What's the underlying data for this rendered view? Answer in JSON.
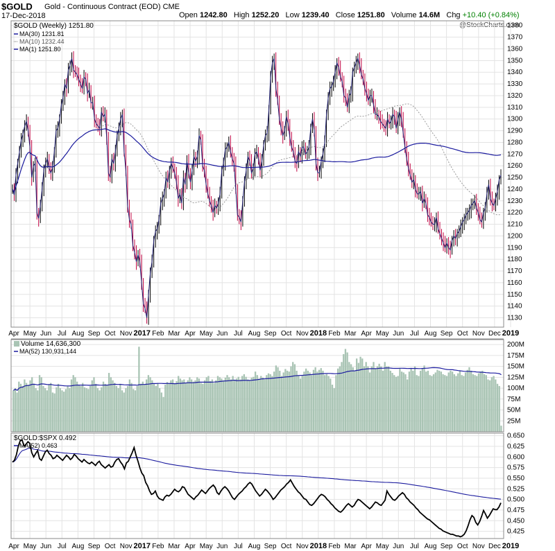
{
  "header": {
    "symbol": "$GOLD",
    "description": "Gold - Continuous Contract (EOD)",
    "exchange": "CME",
    "date": "17-Dec-2018",
    "open_label": "Open",
    "open": "1242.80",
    "high_label": "High",
    "high": "1252.20",
    "low_label": "Low",
    "low": "1239.40",
    "close_label": "Close",
    "close": "1251.80",
    "volume_label": "Volume",
    "volume": "14.6M",
    "chg_label": "Chg",
    "chg": "+10.40 (+0.84%)",
    "watermark": "@StockCharts.com"
  },
  "colors": {
    "price_line": "#1a1a6e",
    "ma30": "#1a1a9e",
    "ma10": "#999999",
    "up_bar": "#000000",
    "down_bar": "#c00040",
    "volume_bar": "#a9c4b4",
    "volume_ma": "#1a1a9e",
    "ratio_line": "#000000",
    "ratio_ma": "#1a1a9e",
    "grid": "#e3e3e3"
  },
  "chart_data": [
    {
      "type": "line",
      "title": "$GOLD (Weekly) 1251.80",
      "legend": [
        {
          "label": "MA(30) 1231.81",
          "style": "solid"
        },
        {
          "label": "MA(10) 1232.44",
          "style": "dotted"
        },
        {
          "label": "MA(1) 1251.80",
          "style": "solid"
        }
      ],
      "yticks": [
        1130,
        1140,
        1150,
        1160,
        1170,
        1180,
        1190,
        1200,
        1210,
        1220,
        1230,
        1240,
        1250,
        1260,
        1270,
        1280,
        1290,
        1300,
        1310,
        1320,
        1330,
        1340,
        1350,
        1360,
        1370,
        1380
      ],
      "ylim": [
        1122,
        1384
      ],
      "close_weekly": [
        1240,
        1235,
        1252,
        1262,
        1272,
        1282,
        1287,
        1294,
        1298,
        1290,
        1276,
        1250,
        1260,
        1262,
        1220,
        1215,
        1226,
        1240,
        1257,
        1262,
        1266,
        1258,
        1254,
        1258,
        1272,
        1290,
        1292,
        1300,
        1312,
        1318,
        1330,
        1326,
        1342,
        1346,
        1352,
        1342,
        1340,
        1338,
        1334,
        1330,
        1326,
        1336,
        1334,
        1322,
        1325,
        1314,
        1314,
        1300,
        1296,
        1294,
        1292,
        1306,
        1302,
        1304,
        1284,
        1254,
        1250,
        1266,
        1262,
        1272,
        1286,
        1292,
        1300,
        1304,
        1272,
        1256,
        1226,
        1214,
        1210,
        1192,
        1186,
        1178,
        1184,
        1178,
        1160,
        1142,
        1138,
        1130,
        1150,
        1168,
        1178,
        1196,
        1204,
        1206,
        1214,
        1228,
        1232,
        1236,
        1250,
        1246,
        1256,
        1262,
        1258,
        1254,
        1246,
        1232,
        1236,
        1228,
        1250,
        1244,
        1264,
        1254,
        1246,
        1256,
        1268,
        1264,
        1268,
        1286,
        1282,
        1260,
        1256,
        1244,
        1236,
        1230,
        1226,
        1220,
        1226,
        1224,
        1228,
        1236,
        1256,
        1262,
        1274,
        1276,
        1280,
        1272,
        1266,
        1262,
        1240,
        1218,
        1216,
        1212,
        1230,
        1246,
        1256,
        1268,
        1264,
        1254,
        1258,
        1270,
        1272,
        1266,
        1256,
        1264,
        1278,
        1286,
        1288,
        1308,
        1336,
        1348,
        1352,
        1326,
        1316,
        1300,
        1292,
        1286,
        1290,
        1302,
        1296,
        1284,
        1276,
        1272,
        1264,
        1262,
        1272,
        1268,
        1276,
        1276,
        1270,
        1272,
        1276,
        1292,
        1300,
        1290,
        1262,
        1254,
        1254,
        1264,
        1270,
        1280,
        1304,
        1318,
        1326,
        1328,
        1332,
        1340,
        1348,
        1344,
        1336,
        1332,
        1320,
        1318,
        1310,
        1320,
        1322,
        1340,
        1344,
        1348,
        1352,
        1346,
        1338,
        1334,
        1326,
        1322,
        1316,
        1320,
        1320,
        1312,
        1304,
        1304,
        1302,
        1298,
        1296,
        1294,
        1292,
        1300,
        1296,
        1298,
        1304,
        1302,
        1292,
        1300,
        1306,
        1300,
        1288,
        1276,
        1266,
        1258,
        1252,
        1246,
        1248,
        1240,
        1236,
        1236,
        1238,
        1228,
        1232,
        1228,
        1218,
        1216,
        1212,
        1210,
        1210,
        1216,
        1206,
        1202,
        1198,
        1194,
        1190,
        1194,
        1190,
        1188,
        1196,
        1200,
        1198,
        1202,
        1204,
        1208,
        1212,
        1214,
        1218,
        1220,
        1222,
        1226,
        1228,
        1230,
        1224,
        1220,
        1214,
        1212,
        1220,
        1224,
        1236,
        1244,
        1232,
        1228,
        1226,
        1232,
        1238,
        1248,
        1252
      ]
    },
    {
      "type": "bar",
      "title": "Volume 14,636,300",
      "legend": [
        {
          "label": "MA(52) 130,931,144"
        }
      ],
      "yticks_labels": [
        "25M",
        "50M",
        "75M",
        "100M",
        "125M",
        "150M",
        "175M",
        "200M"
      ],
      "ylim": [
        0,
        205
      ],
      "values_millions": [
        95,
        100,
        90,
        115,
        110,
        105,
        120,
        112,
        108,
        118,
        125,
        110,
        100,
        95,
        130,
        125,
        105,
        100,
        95,
        108,
        112,
        90,
        88,
        102,
        110,
        100,
        95,
        92,
        98,
        105,
        100,
        120,
        130,
        125,
        115,
        108,
        105,
        112,
        102,
        100,
        98,
        105,
        118,
        125,
        110,
        100,
        95,
        102,
        115,
        110,
        108,
        135,
        125,
        118,
        112,
        105,
        100,
        110,
        95,
        90,
        100,
        105,
        120,
        112,
        98,
        95,
        105,
        195,
        110,
        115,
        108,
        120,
        130,
        125,
        118,
        110,
        105,
        112,
        100,
        90,
        80,
        108,
        114,
        112,
        118,
        120,
        110,
        116,
        128,
        122,
        118,
        120,
        112,
        118,
        125,
        120,
        115,
        118,
        125,
        122,
        112,
        110,
        118,
        125,
        128,
        116,
        120,
        112,
        118,
        128,
        125,
        122,
        118,
        124,
        130,
        125,
        120,
        128,
        118,
        122,
        126,
        120,
        128,
        132,
        126,
        120,
        118,
        124,
        126,
        138,
        130,
        122,
        128,
        124,
        120,
        130,
        134,
        132,
        128,
        138,
        152,
        148,
        140,
        128,
        136,
        144,
        140,
        138,
        150,
        160,
        155,
        140,
        130,
        122,
        130,
        138,
        145,
        140,
        136,
        130,
        142,
        148,
        138,
        142,
        146,
        140,
        130,
        132,
        128,
        122,
        108,
        100,
        130,
        145,
        150,
        160,
        178,
        190,
        182,
        160,
        155,
        148,
        140,
        168,
        158,
        172,
        168,
        150,
        160,
        150,
        136,
        150,
        160,
        144,
        150,
        156,
        150,
        140,
        160,
        150,
        150,
        140,
        135,
        130,
        126,
        128,
        146,
        138,
        136,
        132,
        120,
        138,
        146,
        140,
        150,
        130,
        128,
        140,
        146,
        152,
        138,
        140,
        130,
        128,
        132,
        136,
        142,
        140,
        138,
        132,
        130,
        128,
        136,
        140,
        138,
        132,
        128,
        134,
        140,
        130,
        128,
        136,
        142,
        148,
        140,
        132,
        130,
        128,
        134,
        138,
        140,
        132,
        130,
        120,
        118,
        125,
        128,
        120,
        110,
        105,
        14
      ]
    },
    {
      "type": "line",
      "title": "$GOLD:$SPX 0.492",
      "legend": [
        {
          "label": "MA(52) 0.463"
        }
      ],
      "yticks_labels": [
        "0.425",
        "0.450",
        "0.475",
        "0.500",
        "0.525",
        "0.550",
        "0.575",
        "0.600",
        "0.625",
        "0.650"
      ],
      "ylim": [
        0.408,
        0.656
      ],
      "values": [
        0.588,
        0.592,
        0.605,
        0.625,
        0.638,
        0.64,
        0.625,
        0.63,
        0.636,
        0.632,
        0.61,
        0.6,
        0.608,
        0.615,
        0.596,
        0.592,
        0.602,
        0.612,
        0.616,
        0.608,
        0.604,
        0.596,
        0.598,
        0.604,
        0.6,
        0.596,
        0.592,
        0.598,
        0.604,
        0.6,
        0.594,
        0.598,
        0.606,
        0.602,
        0.596,
        0.592,
        0.588,
        0.594,
        0.59,
        0.586,
        0.584,
        0.588,
        0.584,
        0.58,
        0.586,
        0.59,
        0.582,
        0.578,
        0.574,
        0.578,
        0.582,
        0.576,
        0.578,
        0.588,
        0.594,
        0.596,
        0.588,
        0.582,
        0.572,
        0.586,
        0.59,
        0.6,
        0.61,
        0.622,
        0.604,
        0.59,
        0.574,
        0.562,
        0.556,
        0.54,
        0.532,
        0.52,
        0.512,
        0.514,
        0.52,
        0.508,
        0.502,
        0.5,
        0.498,
        0.506,
        0.51,
        0.508,
        0.512,
        0.518,
        0.524,
        0.52,
        0.518,
        0.522,
        0.53,
        0.528,
        0.52,
        0.512,
        0.508,
        0.504,
        0.5,
        0.506,
        0.51,
        0.516,
        0.522,
        0.518,
        0.514,
        0.52,
        0.526,
        0.53,
        0.534,
        0.528,
        0.516,
        0.512,
        0.52,
        0.526,
        0.53,
        0.526,
        0.52,
        0.512,
        0.504,
        0.5,
        0.506,
        0.512,
        0.516,
        0.52,
        0.526,
        0.53,
        0.536,
        0.54,
        0.536,
        0.528,
        0.52,
        0.514,
        0.508,
        0.512,
        0.518,
        0.524,
        0.52,
        0.514,
        0.508,
        0.5,
        0.504,
        0.51,
        0.516,
        0.522,
        0.526,
        0.53,
        0.536,
        0.54,
        0.546,
        0.538,
        0.53,
        0.524,
        0.518,
        0.514,
        0.508,
        0.502,
        0.5,
        0.494,
        0.488,
        0.486,
        0.49,
        0.496,
        0.502,
        0.508,
        0.512,
        0.51,
        0.506,
        0.5,
        0.496,
        0.49,
        0.486,
        0.48,
        0.476,
        0.472,
        0.47,
        0.474,
        0.48,
        0.486,
        0.49,
        0.486,
        0.482,
        0.486,
        0.494,
        0.5,
        0.498,
        0.494,
        0.49,
        0.486,
        0.482,
        0.478,
        0.482,
        0.488,
        0.494,
        0.492,
        0.488,
        0.486,
        0.492,
        0.498,
        0.52,
        0.512,
        0.506,
        0.5,
        0.498,
        0.502,
        0.508,
        0.512,
        0.516,
        0.512,
        0.504,
        0.5,
        0.494,
        0.49,
        0.486,
        0.48,
        0.476,
        0.47,
        0.466,
        0.462,
        0.458,
        0.454,
        0.452,
        0.448,
        0.444,
        0.44,
        0.436,
        0.432,
        0.43,
        0.426,
        0.424,
        0.422,
        0.42,
        0.418,
        0.418,
        0.416,
        0.414,
        0.414,
        0.412,
        0.414,
        0.418,
        0.426,
        0.438,
        0.452,
        0.462,
        0.458,
        0.446,
        0.44,
        0.448,
        0.46,
        0.474,
        0.466,
        0.456,
        0.462,
        0.47,
        0.478,
        0.476,
        0.476,
        0.482,
        0.492
      ]
    }
  ],
  "xaxis_labels": [
    "Apr",
    "May",
    "Jun",
    "Jul",
    "Aug",
    "Sep",
    "Oct",
    "Nov",
    "2017",
    "Feb",
    "Mar",
    "Apr",
    "May",
    "Jun",
    "Jul",
    "Aug",
    "Sep",
    "Oct",
    "Nov",
    "2018",
    "Feb",
    "Mar",
    "Apr",
    "May",
    "Jun",
    "Jul",
    "Aug",
    "Sep",
    "Oct",
    "Nov",
    "Dec",
    "2019"
  ]
}
